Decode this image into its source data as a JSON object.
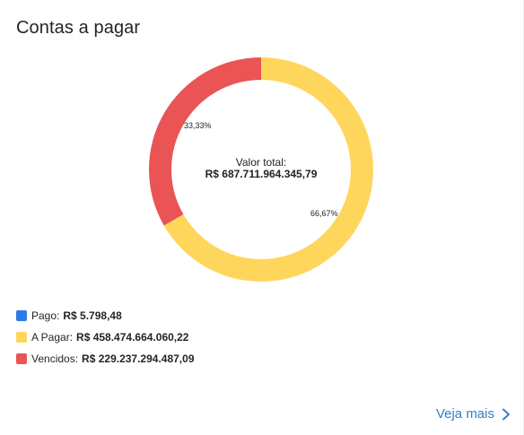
{
  "card": {
    "title": "Contas a pagar",
    "more_link": "Veja mais"
  },
  "center": {
    "label": "Valor total:",
    "value": "R$ 687.711.964.345,79"
  },
  "legend": [
    {
      "label": "Pago:",
      "value": "R$ 5.798,48",
      "color": "#2c7be5"
    },
    {
      "label": "A Pagar:",
      "value": "R$ 458.474.664.060,22",
      "color": "#ffd65c"
    },
    {
      "label": "Vencidos:",
      "value": "R$ 229.237.294.487,09",
      "color": "#ea5455"
    }
  ],
  "chart_data": {
    "type": "pie",
    "categories": [
      "Pago",
      "A Pagar",
      "Vencidos"
    ],
    "values": [
      5798.48,
      458474664060.22,
      229237294487.09
    ],
    "percent_labels": [
      "",
      "66,67%",
      "33,33%"
    ],
    "colors": [
      "#2c7be5",
      "#ffd65c",
      "#ea5455"
    ]
  }
}
